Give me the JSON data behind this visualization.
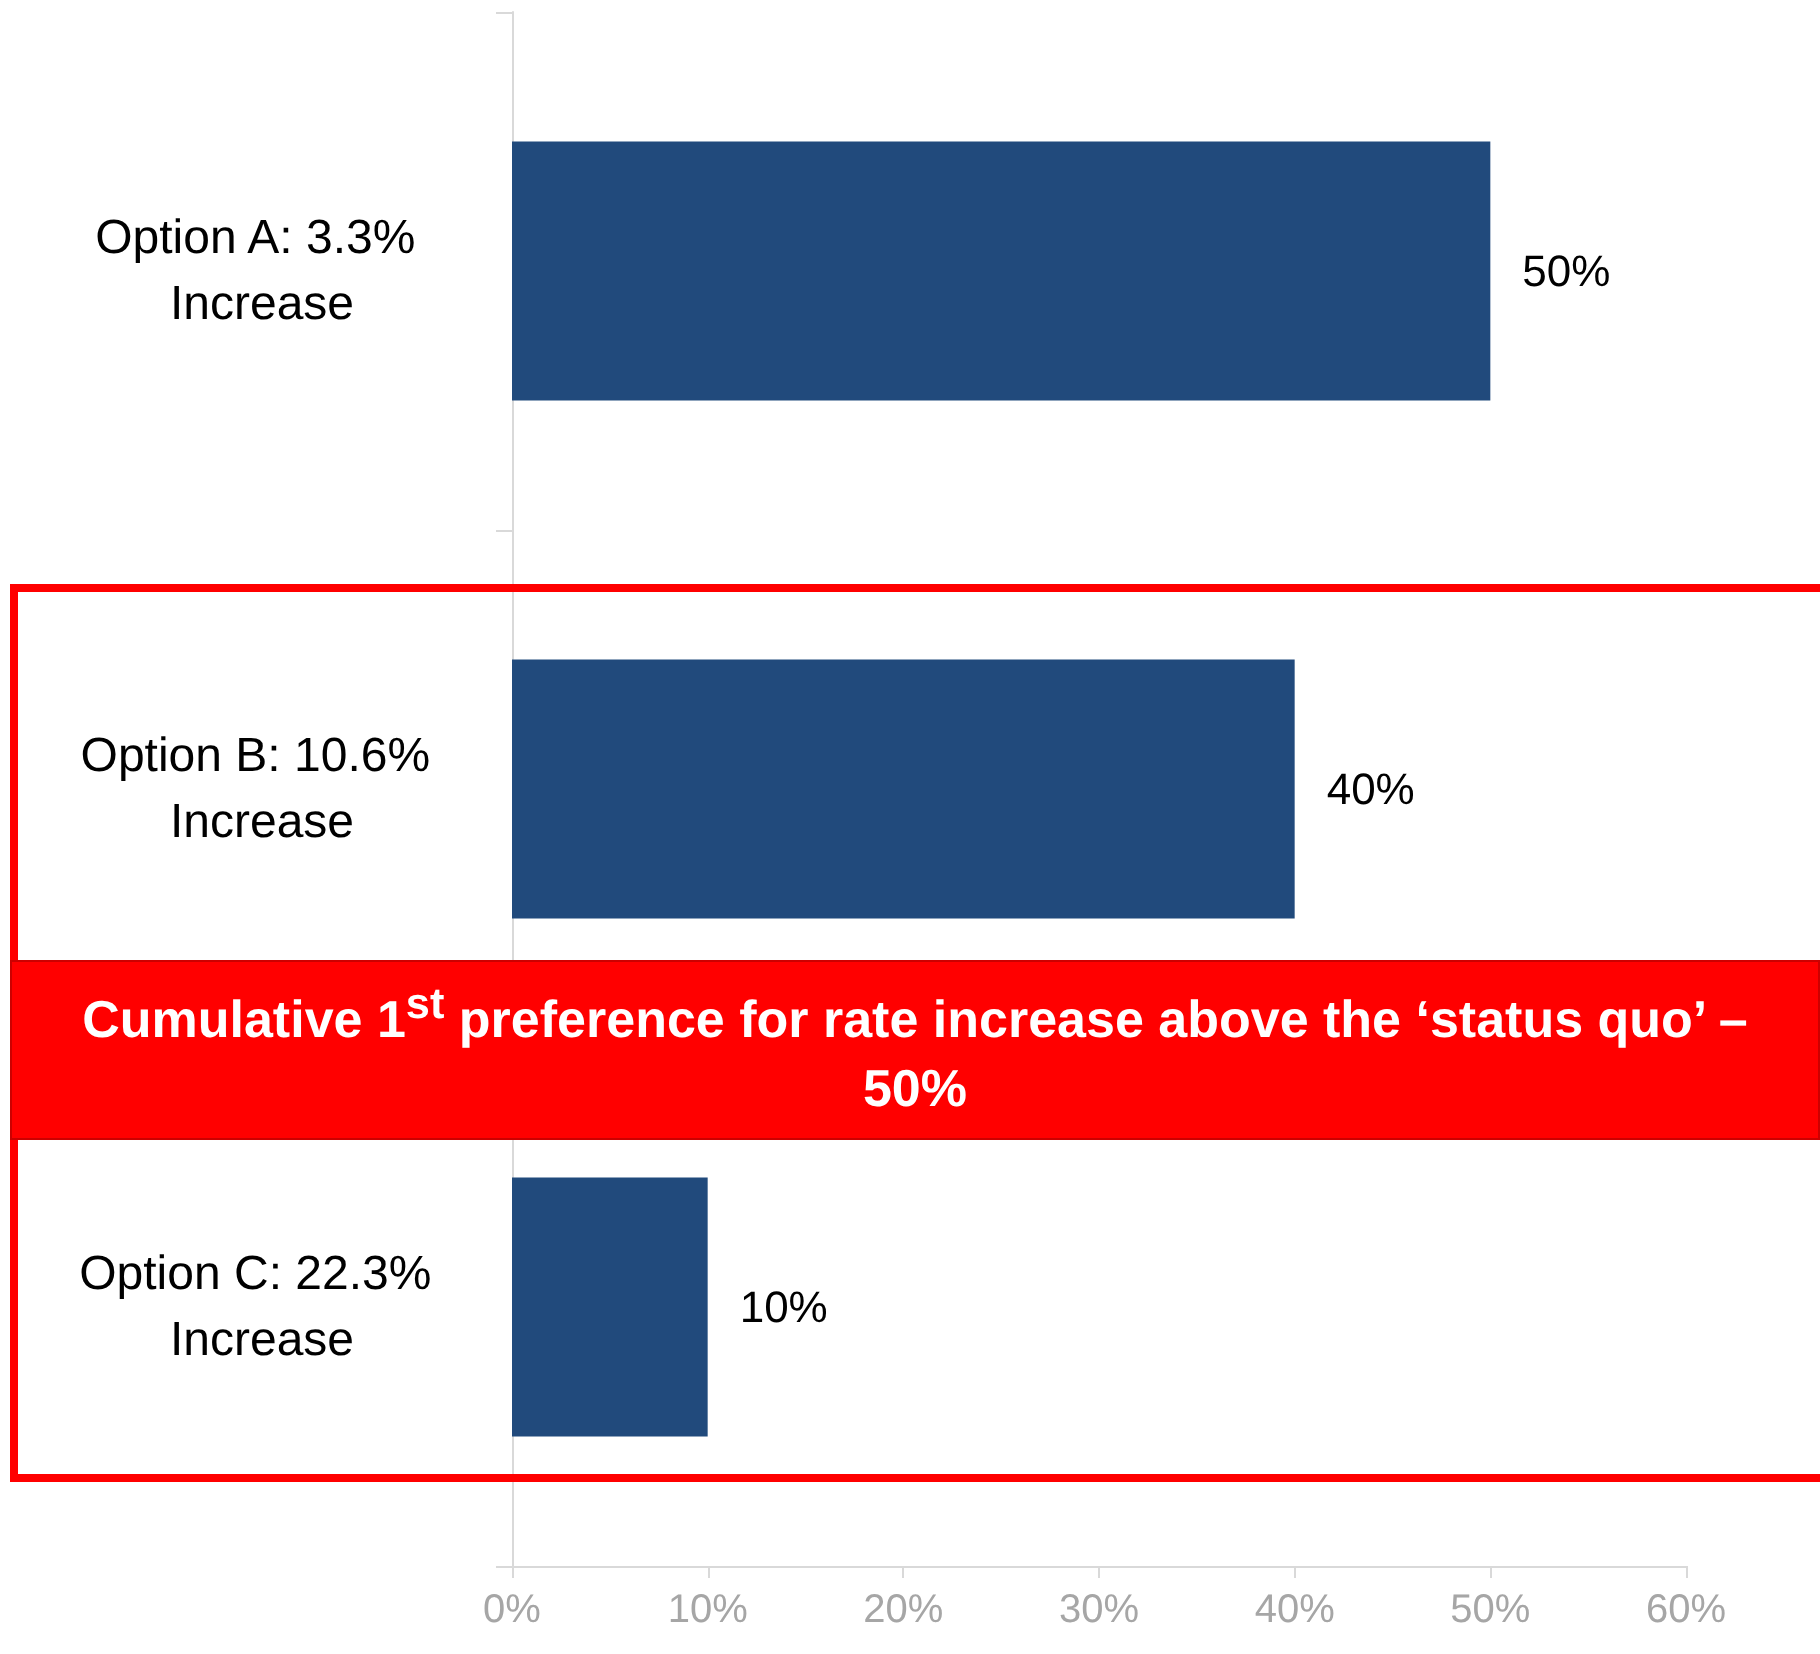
{
  "chart_data": {
    "type": "bar",
    "orientation": "horizontal",
    "categories": [
      "Option A: 3.3% Increase",
      "Option B: 10.6% Increase",
      "Option C: 22.3% Increase"
    ],
    "values": [
      50,
      40,
      10
    ],
    "color": "#214a7c",
    "value_labels": [
      "50%",
      "40%",
      "10%"
    ],
    "xlim": [
      0,
      60
    ],
    "xticks": [
      {
        "value": 0,
        "label": "0%"
      },
      {
        "value": 10,
        "label": "10%"
      },
      {
        "value": 20,
        "label": "20%"
      },
      {
        "value": 30,
        "label": "30%"
      },
      {
        "value": 40,
        "label": "40%"
      },
      {
        "value": 50,
        "label": "50%"
      },
      {
        "value": 60,
        "label": "60%"
      }
    ],
    "grid": false,
    "annotations": [
      "Cumulative 1$^{st}$ preference for rate increase above the ‘status quo’ – 50%"
    ]
  }
}
